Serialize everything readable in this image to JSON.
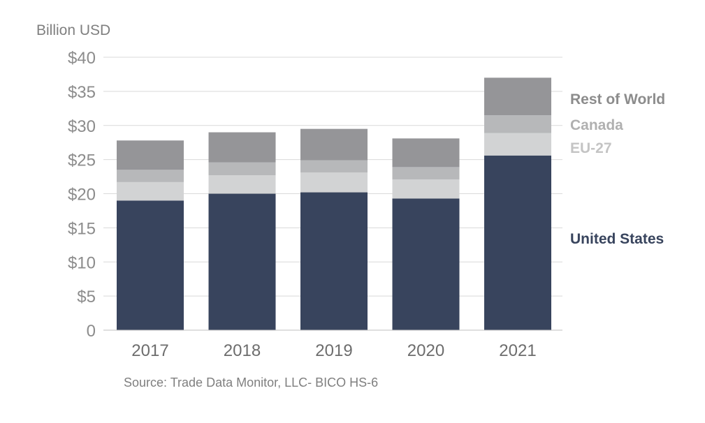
{
  "chart_data": {
    "type": "bar",
    "stacked": true,
    "title": "",
    "ylabel": "Billion USD",
    "xlabel": "",
    "categories": [
      "2017",
      "2018",
      "2019",
      "2020",
      "2021"
    ],
    "ylim": [
      0,
      40
    ],
    "yticks": [
      0,
      5,
      10,
      15,
      20,
      25,
      30,
      35,
      40
    ],
    "ytick_labels": [
      "0",
      "$5",
      "$10",
      "$15",
      "$20",
      "$25",
      "$30",
      "$35",
      "$40"
    ],
    "grid": true,
    "series": [
      {
        "name": "United States",
        "values": [
          19.0,
          20.0,
          20.2,
          19.3,
          25.6
        ],
        "color": "#38445d"
      },
      {
        "name": "EU-27",
        "values": [
          2.7,
          2.7,
          2.9,
          2.8,
          3.3
        ],
        "color": "#d2d3d4"
      },
      {
        "name": "Canada",
        "values": [
          1.8,
          1.9,
          1.8,
          1.8,
          2.6
        ],
        "color": "#b7b8ba"
      },
      {
        "name": "Rest of World",
        "values": [
          4.3,
          4.4,
          4.6,
          4.2,
          5.5
        ],
        "color": "#959598"
      }
    ],
    "legend_labels": [
      {
        "series": "Rest of World",
        "color": "#8c8c8c"
      },
      {
        "series": "Canada",
        "color": "#b0b0b0"
      },
      {
        "series": "EU-27",
        "color": "#c4c4c4"
      },
      {
        "series": "United States",
        "color": "#38445d"
      }
    ],
    "source": "Source: Trade Data Monitor, LLC- BICO HS-6"
  }
}
